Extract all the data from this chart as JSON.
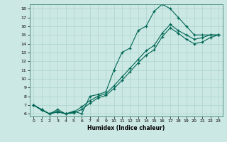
{
  "xlabel": "Humidex (Indice chaleur)",
  "background_color": "#cce8e4",
  "grid_color": "#aad4cc",
  "line_color": "#006655",
  "xlim": [
    -0.5,
    23.5
  ],
  "ylim": [
    5.7,
    18.5
  ],
  "xticks": [
    0,
    1,
    2,
    3,
    4,
    5,
    6,
    7,
    8,
    9,
    10,
    11,
    12,
    13,
    14,
    15,
    16,
    17,
    18,
    19,
    20,
    21,
    22,
    23
  ],
  "yticks": [
    6,
    7,
    8,
    9,
    10,
    11,
    12,
    13,
    14,
    15,
    16,
    17,
    18
  ],
  "line1_x": [
    0,
    1,
    2,
    3,
    4,
    5,
    6,
    7,
    8,
    9,
    10,
    11,
    12,
    13,
    14,
    15,
    16,
    17,
    18,
    19,
    20,
    21,
    22,
    23
  ],
  "line1_y": [
    7,
    6.5,
    6.0,
    6.5,
    6.0,
    6.3,
    6.0,
    8.0,
    8.2,
    8.5,
    11.0,
    13.0,
    13.5,
    15.5,
    16.0,
    17.7,
    18.5,
    18.0,
    17.0,
    16.0,
    15.0,
    15.0,
    15.0,
    15.0
  ],
  "line2_x": [
    0,
    1,
    2,
    3,
    4,
    5,
    6,
    7,
    8,
    9,
    10,
    11,
    12,
    13,
    14,
    15,
    16,
    17,
    18,
    19,
    20,
    21,
    22,
    23
  ],
  "line2_y": [
    7.0,
    6.5,
    6.0,
    6.3,
    6.0,
    6.2,
    6.8,
    7.5,
    8.0,
    8.3,
    9.2,
    10.2,
    11.2,
    12.2,
    13.2,
    13.8,
    15.2,
    16.2,
    15.5,
    15.0,
    14.5,
    14.7,
    15.0,
    15.0
  ],
  "line3_x": [
    0,
    1,
    2,
    3,
    4,
    5,
    6,
    7,
    8,
    9,
    10,
    11,
    12,
    13,
    14,
    15,
    16,
    17,
    18,
    19,
    20,
    21,
    22,
    23
  ],
  "line3_y": [
    7.0,
    6.4,
    6.0,
    6.2,
    6.0,
    6.1,
    6.5,
    7.2,
    7.8,
    8.1,
    8.9,
    9.8,
    10.8,
    11.8,
    12.7,
    13.3,
    14.8,
    15.8,
    15.2,
    14.5,
    14.0,
    14.2,
    14.7,
    15.0
  ]
}
